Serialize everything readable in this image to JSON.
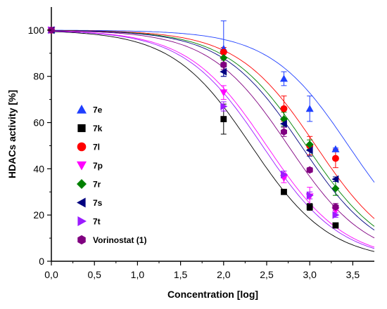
{
  "chart_data": {
    "type": "scatter",
    "xlabel": "Concentration [log]",
    "ylabel": "HDACs activity [%]",
    "xlim": [
      0,
      3.75
    ],
    "ylim": [
      0,
      110
    ],
    "x_ticks": [
      "0,0",
      "0,5",
      "1,0",
      "1,5",
      "2,0",
      "2,5",
      "3,0",
      "3,5"
    ],
    "x_tick_values": [
      0,
      0.5,
      1.0,
      1.5,
      2.0,
      2.5,
      3.0,
      3.5
    ],
    "y_ticks": [
      "0",
      "20",
      "40",
      "60",
      "80",
      "100"
    ],
    "y_tick_values": [
      0,
      20,
      40,
      60,
      80,
      100
    ],
    "grid": false,
    "legend_position": "left",
    "fit": "sigmoidal dose-response curves",
    "series": [
      {
        "name": "7e",
        "marker": "triangle-up",
        "color": "#1f3fff",
        "x": [
          0,
          2.0,
          2.7,
          3.0,
          3.3
        ],
        "y": [
          100,
          92,
          79,
          66,
          48.5
        ],
        "err": [
          0,
          12,
          3,
          5.5,
          0.5
        ],
        "ic50": 3.45
      },
      {
        "name": "7k",
        "marker": "square",
        "color": "#000000",
        "x": [
          0,
          2.0,
          2.7,
          3.0,
          3.3
        ],
        "y": [
          100,
          61.5,
          30,
          23.5,
          15.5
        ],
        "err": [
          0,
          6.5,
          0,
          1.5,
          1
        ],
        "ic50": 2.32
      },
      {
        "name": "7l",
        "marker": "circle",
        "color": "#ff0000",
        "x": [
          0,
          2.0,
          2.7,
          3.0,
          3.3
        ],
        "y": [
          100,
          90.5,
          66,
          50,
          44.5
        ],
        "err": [
          0,
          2,
          5.5,
          4,
          4
        ],
        "ic50": 3.07
      },
      {
        "name": "7p",
        "marker": "triangle-down",
        "color": "#ff00ff",
        "x": [
          0,
          2.0,
          2.7,
          3.0,
          3.3
        ],
        "y": [
          100,
          73,
          36,
          28,
          22
        ],
        "err": [
          0,
          3,
          2,
          4,
          2
        ],
        "ic50": 2.5
      },
      {
        "name": "7r",
        "marker": "diamond",
        "color": "#008000",
        "x": [
          0,
          2.0,
          2.7,
          3.0,
          3.3
        ],
        "y": [
          100,
          88,
          61.5,
          50.5,
          31.5
        ],
        "err": [
          0,
          2,
          3,
          2,
          3
        ],
        "ic50": 2.96
      },
      {
        "name": "7s",
        "marker": "triangle-left",
        "color": "#000080",
        "x": [
          0,
          2.0,
          2.7,
          3.0,
          3.3
        ],
        "y": [
          100,
          82,
          59.5,
          48,
          35.5
        ],
        "err": [
          0,
          2,
          1.5,
          2.5,
          1
        ],
        "ic50": 2.9
      },
      {
        "name": "7t",
        "marker": "triangle-right",
        "color": "#9b1bff",
        "x": [
          0,
          2.0,
          2.7,
          3.0,
          3.3
        ],
        "y": [
          100,
          67,
          37.5,
          28.5,
          20
        ],
        "err": [
          0,
          2,
          1.5,
          1.5,
          1
        ],
        "ic50": 2.45
      },
      {
        "name": "Vorinostat (1)",
        "marker": "hexagon",
        "color": "#800080",
        "x": [
          0,
          2.0,
          2.7,
          3.0,
          3.3
        ],
        "y": [
          100,
          85,
          56,
          39.5,
          23.5
        ],
        "err": [
          0,
          2,
          2,
          1,
          1.5
        ],
        "ic50": 2.75
      }
    ]
  }
}
